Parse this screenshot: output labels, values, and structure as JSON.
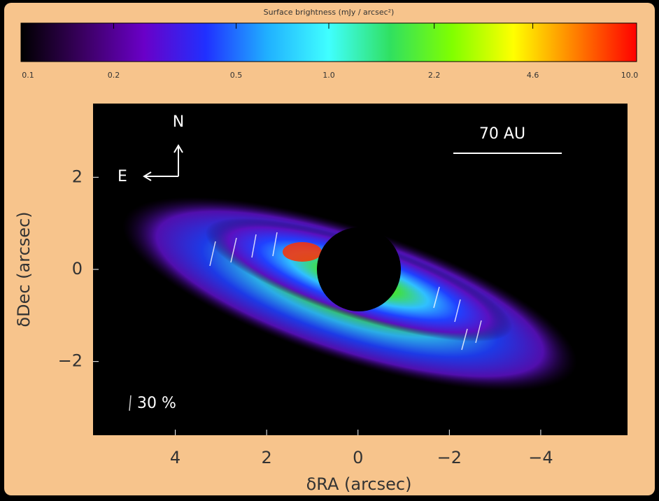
{
  "chart_data": {
    "type": "image",
    "xlabel": "δRA (arcsec)",
    "ylabel": "δDec (arcsec)",
    "xlim": [
      5.8,
      -5.9
    ],
    "ylim": [
      -3.6,
      3.6
    ],
    "xticks": [
      4,
      2,
      0,
      {
        "value": -2,
        "label": "−2"
      },
      {
        "value": -4,
        "label": "−4"
      }
    ],
    "yticks": [
      2,
      0,
      {
        "value": -2,
        "label": "−2"
      }
    ],
    "colorbar": {
      "title": "Surface brightness (mJy / arcsec²)",
      "log": true,
      "lim": [
        0.1,
        10
      ],
      "ticks": [
        0.1,
        0.2,
        0.5,
        {
          "value": 1,
          "label": "1.0"
        },
        2.2,
        4.6,
        {
          "value": 10,
          "label": "10.0"
        }
      ],
      "colormap": [
        "#000000",
        "#3a0060",
        "#6a00c8",
        "#2030ff",
        "#20b0ff",
        "#40ffff",
        "#30e060",
        "#80ff00",
        "#ffff00",
        "#ff8000",
        "#ff0000"
      ]
    },
    "annotations": {
      "north": "N",
      "east": "E",
      "scale": "70 AU",
      "polarization": "30 %"
    }
  }
}
